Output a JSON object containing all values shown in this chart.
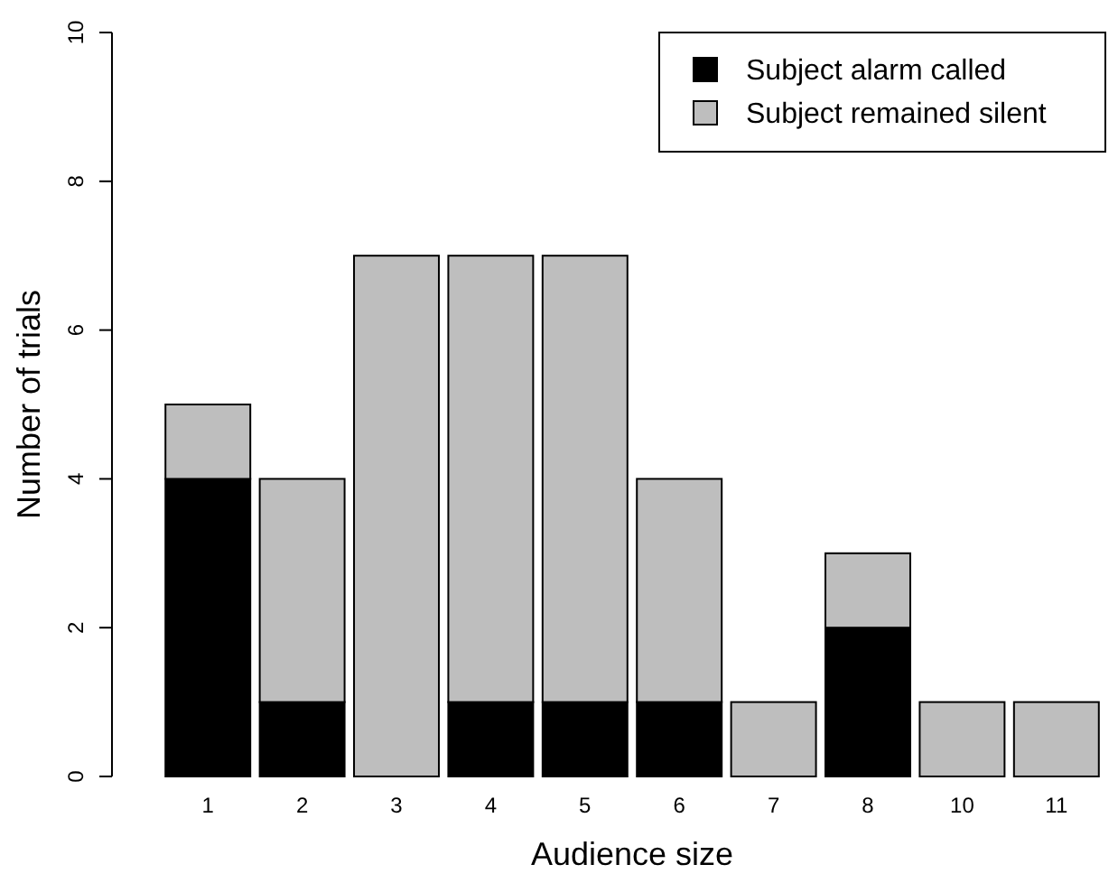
{
  "chart_data": {
    "type": "bar",
    "stacked": true,
    "xlabel": "Audience size",
    "ylabel": "Number of trials",
    "categories": [
      "1",
      "2",
      "3",
      "4",
      "5",
      "6",
      "7",
      "8",
      "10",
      "11"
    ],
    "series": [
      {
        "name": "Subject alarm called",
        "color": "#000000",
        "values": [
          4,
          1,
          0,
          1,
          1,
          1,
          0,
          2,
          0,
          0
        ]
      },
      {
        "name": "Subject remained silent",
        "color": "#bebebe",
        "values": [
          1,
          3,
          7,
          6,
          6,
          3,
          1,
          1,
          1,
          1
        ]
      }
    ],
    "ylim": [
      0,
      10
    ],
    "yticks": [
      0,
      2,
      4,
      6,
      8,
      10
    ],
    "legend": "top right",
    "grid": false
  }
}
